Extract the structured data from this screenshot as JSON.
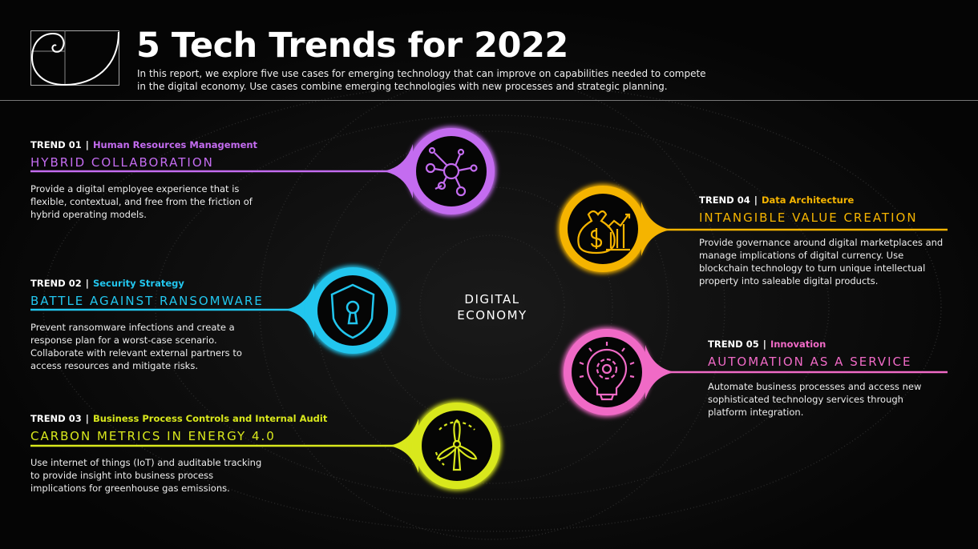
{
  "header": {
    "title": "5 Tech Trends for 2022",
    "subtitle": "In this report, we explore five use cases for emerging technology that can improve on capabilities needed to compete in the digital economy. Use cases combine emerging technologies with new processes and strategic planning.",
    "logo_icon": "golden-spiral-icon"
  },
  "center_label": "DIGITAL ECONOMY",
  "center_lines": [
    "DIGITAL",
    "ECONOMY"
  ],
  "trends": [
    {
      "label": "TREND 01",
      "category": "Human Resources Management",
      "title": "HYBRID COLLABORATION",
      "body": "Provide a digital employee experience that is flexible, contextual, and free from the friction of hybrid operating models.",
      "color": "#c46cf0",
      "icon": "network-nodes-icon"
    },
    {
      "label": "TREND 02",
      "category": "Security Strategy",
      "title": "BATTLE AGAINST RANSOMWARE",
      "body": "Prevent ransomware infections and create a response plan for a worst-case scenario. Collaborate with relevant external partners to access resources and mitigate risks.",
      "color": "#22c6ee",
      "icon": "shield-keyhole-icon"
    },
    {
      "label": "TREND 03",
      "category": "Business Process Controls and Internal Audit",
      "title": "CARBON METRICS IN ENERGY 4.0",
      "body": "Use internet of things (IoT) and auditable tracking to provide insight into business process implications for greenhouse gas emissions.",
      "color": "#d9e81c",
      "icon": "wind-turbine-icon"
    },
    {
      "label": "TREND 04",
      "category": "Data Architecture",
      "title": "INTANGIBLE VALUE CREATION",
      "body": "Provide governance around digital marketplaces and manage implications of digital currency. Use blockchain technology to turn unique intellectual property into saleable digital products.",
      "color": "#f5b400",
      "icon": "money-bag-growth-icon"
    },
    {
      "label": "TREND 05",
      "category": "Innovation",
      "title": "AUTOMATION AS A SERVICE",
      "body": "Automate business processes and access new sophisticated technology services through platform integration.",
      "color": "#f06ac6",
      "icon": "lightbulb-gear-icon"
    }
  ]
}
